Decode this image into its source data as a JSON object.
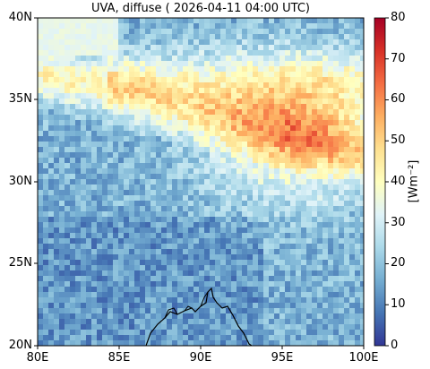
{
  "title": "UVA, diffuse ( 2026-04-11 04:00 UTC)",
  "map": {
    "lon_range": [
      80,
      100
    ],
    "lat_range": [
      20,
      40
    ],
    "x_ticks": [
      "80E",
      "85E",
      "90E",
      "95E",
      "100E"
    ],
    "y_ticks": [
      "40N",
      "35N",
      "30N",
      "25N",
      "20N"
    ],
    "coastline_color": "#000000",
    "ocean_color": "#78a8cc",
    "background_color": "#7aa9cf"
  },
  "colorbar": {
    "label": "[Wm$^{-2}$]",
    "label_display": "[Wm⁻²]",
    "min": 0,
    "max": 80,
    "ticks": [
      "80",
      "70",
      "60",
      "50",
      "40",
      "30",
      "20",
      "10",
      "0"
    ],
    "colormap": "RdYlBu_r",
    "stops": [
      "#313695",
      "#4575b4",
      "#74add1",
      "#abd9e9",
      "#e0f3f8",
      "#ffffbf",
      "#fee090",
      "#fdae61",
      "#f46d43",
      "#d73027",
      "#a50026"
    ]
  }
}
